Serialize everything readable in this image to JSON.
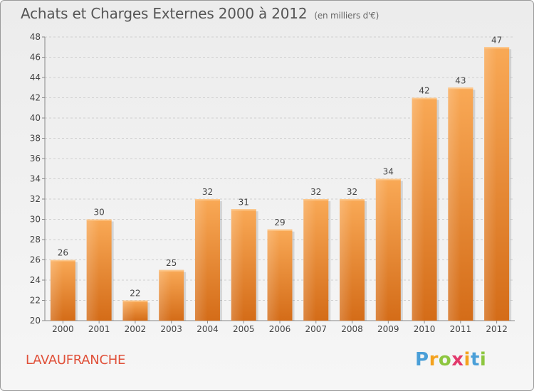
{
  "title": "Achats et Charges Externes 2000 à 2012",
  "unit": "(en milliers d'€)",
  "commune": "LAVAUFRANCHE",
  "logo": {
    "letters": [
      "P",
      "r",
      "o",
      "x",
      "i",
      "t",
      "i"
    ],
    "colors": [
      "#4a9fd8",
      "#f4a21e",
      "#8dc63f",
      "#e2386b",
      "#f4a21e",
      "#4a9fd8",
      "#8dc63f"
    ]
  },
  "colors": {
    "bar_light": "#f7a54f",
    "bar_dark": "#d9701c",
    "grid": "#cfcfcf",
    "axis": "#888888"
  },
  "chart_data": {
    "type": "bar",
    "categories": [
      "2000",
      "2001",
      "2002",
      "2003",
      "2004",
      "2005",
      "2006",
      "2007",
      "2008",
      "2009",
      "2010",
      "2011",
      "2012"
    ],
    "values": [
      26,
      30,
      22,
      25,
      32,
      31,
      29,
      32,
      32,
      34,
      42,
      43,
      47
    ],
    "title": "Achats et Charges Externes 2000 à 2012",
    "xlabel": "",
    "ylabel": "",
    "ylim": [
      20,
      48
    ],
    "yticks": [
      20,
      22,
      24,
      26,
      28,
      30,
      32,
      34,
      36,
      38,
      40,
      42,
      44,
      46,
      48
    ],
    "grid": true,
    "legend": "none"
  }
}
